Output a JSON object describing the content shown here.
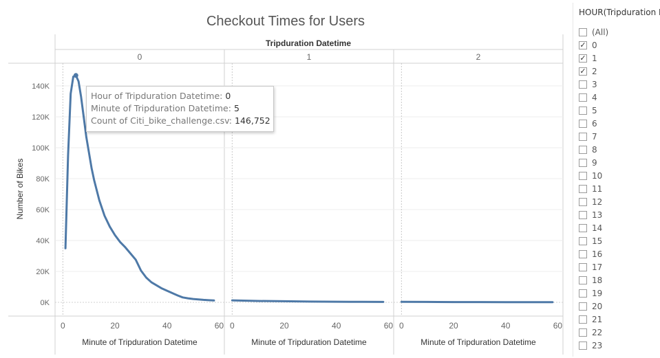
{
  "title": "Checkout Times for Users",
  "header_label": "Tripduration Datetime",
  "y_axis_label": "Number of Bikes",
  "x_axis_label": "Minute of Tripduration Datetime",
  "colors": {
    "line": "#4e79a7",
    "grid": "#eeeeee",
    "divider": "#d0d0d0"
  },
  "chart_data": {
    "type": "line",
    "title": "Checkout Times for Users",
    "ylabel": "Number of Bikes",
    "xlabel": "Minute of Tripduration Datetime",
    "ylim": [
      0,
      150000
    ],
    "yticks": [
      0,
      20000,
      40000,
      60000,
      80000,
      100000,
      120000,
      140000
    ],
    "ytick_labels": [
      "0K",
      "20K",
      "40K",
      "60K",
      "80K",
      "100K",
      "120K",
      "140K"
    ],
    "xlim": [
      -3,
      62
    ],
    "xticks": [
      0,
      20,
      40,
      60
    ],
    "grid": true,
    "panels": [
      {
        "header": "0",
        "series": [
          {
            "x": [
              1,
              2,
              3,
              4,
              5,
              6,
              7,
              8,
              9,
              10,
              11,
              12,
              14,
              16,
              18,
              20,
              22,
              24,
              26,
              28,
              30,
              32,
              34,
              36,
              38,
              40,
              42,
              44,
              46,
              48,
              50,
              52,
              54,
              56,
              58
            ],
            "values": [
              35000,
              95000,
              135000,
              146000,
              146752,
              143000,
              133000,
              120000,
              107000,
              97000,
              87000,
              79000,
              66000,
              56000,
              49000,
              43500,
              39000,
              35500,
              31500,
              27500,
              20500,
              16000,
              13000,
              11000,
              9000,
              7500,
              6000,
              4500,
              3200,
              2600,
              2200,
              1900,
              1600,
              1400,
              1200
            ]
          }
        ]
      },
      {
        "header": "1",
        "series": [
          {
            "x": [
              0,
              10,
              20,
              30,
              40,
              50,
              58
            ],
            "values": [
              1300,
              900,
              700,
              500,
              400,
              300,
              250
            ]
          }
        ]
      },
      {
        "header": "2",
        "series": [
          {
            "x": [
              0,
              10,
              20,
              30,
              40,
              50,
              58
            ],
            "values": [
              300,
              250,
              200,
              180,
              150,
              130,
              120
            ]
          }
        ]
      }
    ]
  },
  "tooltip": {
    "rows": [
      {
        "key": "Hour of Tripduration Datetime:",
        "value": "0"
      },
      {
        "key": "Minute of Tripduration Datetime:",
        "value": "5"
      },
      {
        "key": "Count of Citi_bike_challenge.csv:",
        "value": "146,752"
      }
    ]
  },
  "filter": {
    "title": "HOUR(Tripduration D",
    "items": [
      {
        "label": "(All)",
        "checked": false
      },
      {
        "label": "0",
        "checked": true
      },
      {
        "label": "1",
        "checked": true
      },
      {
        "label": "2",
        "checked": true
      },
      {
        "label": "3",
        "checked": false
      },
      {
        "label": "4",
        "checked": false
      },
      {
        "label": "5",
        "checked": false
      },
      {
        "label": "6",
        "checked": false
      },
      {
        "label": "7",
        "checked": false
      },
      {
        "label": "8",
        "checked": false
      },
      {
        "label": "9",
        "checked": false
      },
      {
        "label": "10",
        "checked": false
      },
      {
        "label": "11",
        "checked": false
      },
      {
        "label": "12",
        "checked": false
      },
      {
        "label": "13",
        "checked": false
      },
      {
        "label": "14",
        "checked": false
      },
      {
        "label": "15",
        "checked": false
      },
      {
        "label": "16",
        "checked": false
      },
      {
        "label": "17",
        "checked": false
      },
      {
        "label": "18",
        "checked": false
      },
      {
        "label": "19",
        "checked": false
      },
      {
        "label": "20",
        "checked": false
      },
      {
        "label": "21",
        "checked": false
      },
      {
        "label": "22",
        "checked": false
      },
      {
        "label": "23",
        "checked": false
      }
    ]
  }
}
